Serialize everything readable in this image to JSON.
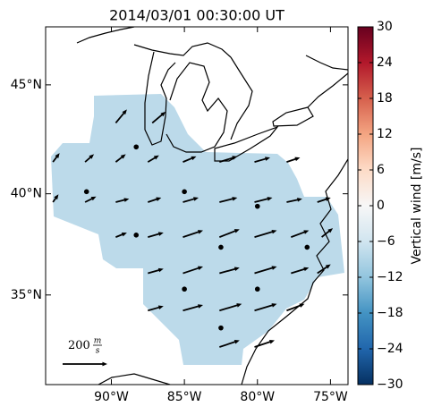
{
  "chart_data": {
    "type": "vector_map",
    "title": "2014/03/01 00:30:00 UT",
    "xlim": [
      -94.5,
      -73.8
    ],
    "ylim": [
      30.3,
      47.5
    ],
    "xticks": [
      {
        "value": -90,
        "label": "90°W"
      },
      {
        "value": -85,
        "label": "85°W"
      },
      {
        "value": -80,
        "label": "80°W"
      },
      {
        "value": -75,
        "label": "75°W"
      }
    ],
    "yticks": [
      {
        "value": 35,
        "label": "35°N"
      },
      {
        "value": 40,
        "label": "40°N"
      },
      {
        "value": 45,
        "label": "45°N"
      }
    ],
    "field_value": -8,
    "colorbar": {
      "label": "Vertical wind [m/s]",
      "lim": [
        -30,
        30
      ],
      "ticks": [
        {
          "value": -30,
          "label": "−30"
        },
        {
          "value": -24,
          "label": "−24"
        },
        {
          "value": -18,
          "label": "−18"
        },
        {
          "value": -12,
          "label": "−12"
        },
        {
          "value": -6,
          "label": "−6"
        },
        0,
        6,
        12,
        18,
        24,
        30
      ],
      "colors": [
        "#053061",
        "#2166ac",
        "#4393c3",
        "#92c5de",
        "#d1e5f0",
        "#f7f7f7",
        "#fddbc7",
        "#f4a582",
        "#d6604d",
        "#b2182b",
        "#67001f"
      ]
    },
    "stations": {
      "lon": [
        -88.3,
        -91.7,
        -85.0,
        -80.0,
        -88.3,
        -82.5,
        -76.6,
        -85.0,
        -80.0,
        -82.5
      ],
      "lat": [
        42.2,
        40.1,
        40.1,
        39.4,
        38.0,
        37.4,
        37.4,
        35.3,
        35.3,
        33.3
      ]
    },
    "vectors": {
      "lon": [
        -89.7,
        -87.2,
        -94.0,
        -91.8,
        -89.7,
        -87.5,
        -85.1,
        -82.6,
        -80.2,
        -78.0,
        -94.0,
        -91.8,
        -89.7,
        -87.5,
        -85.1,
        -82.6,
        -80.2,
        -78.0,
        -75.9,
        -89.7,
        -87.5,
        -85.1,
        -82.6,
        -80.2,
        -77.7,
        -75.6,
        -87.5,
        -85.1,
        -82.6,
        -80.2,
        -77.7,
        -75.9,
        -87.5,
        -85.1,
        -82.6,
        -80.2,
        -78.0,
        -82.6,
        -80.2
      ],
      "lat": [
        43.3,
        43.3,
        41.5,
        41.5,
        41.5,
        41.5,
        41.5,
        41.5,
        41.5,
        41.5,
        39.6,
        39.6,
        39.6,
        39.6,
        39.6,
        39.6,
        39.6,
        39.6,
        39.6,
        37.9,
        37.9,
        37.9,
        37.9,
        37.9,
        37.9,
        37.9,
        36.1,
        36.1,
        36.1,
        36.1,
        36.1,
        36.1,
        34.2,
        34.2,
        34.2,
        34.2,
        34.2,
        32.3,
        32.3
      ],
      "u": [
        50,
        60,
        30,
        40,
        45,
        50,
        60,
        80,
        70,
        60,
        25,
        50,
        60,
        60,
        70,
        80,
        80,
        70,
        60,
        50,
        70,
        90,
        90,
        100,
        80,
        50,
        70,
        90,
        90,
        100,
        80,
        60,
        70,
        90,
        100,
        100,
        80,
        90,
        90
      ],
      "v": [
        60,
        50,
        40,
        35,
        35,
        30,
        25,
        25,
        20,
        20,
        35,
        25,
        15,
        20,
        20,
        20,
        20,
        15,
        20,
        20,
        20,
        30,
        35,
        30,
        30,
        40,
        20,
        30,
        25,
        30,
        25,
        40,
        20,
        25,
        30,
        30,
        30,
        30,
        30
      ]
    },
    "scale": {
      "value": 200,
      "unit_num": "m",
      "unit_den": "s"
    }
  }
}
